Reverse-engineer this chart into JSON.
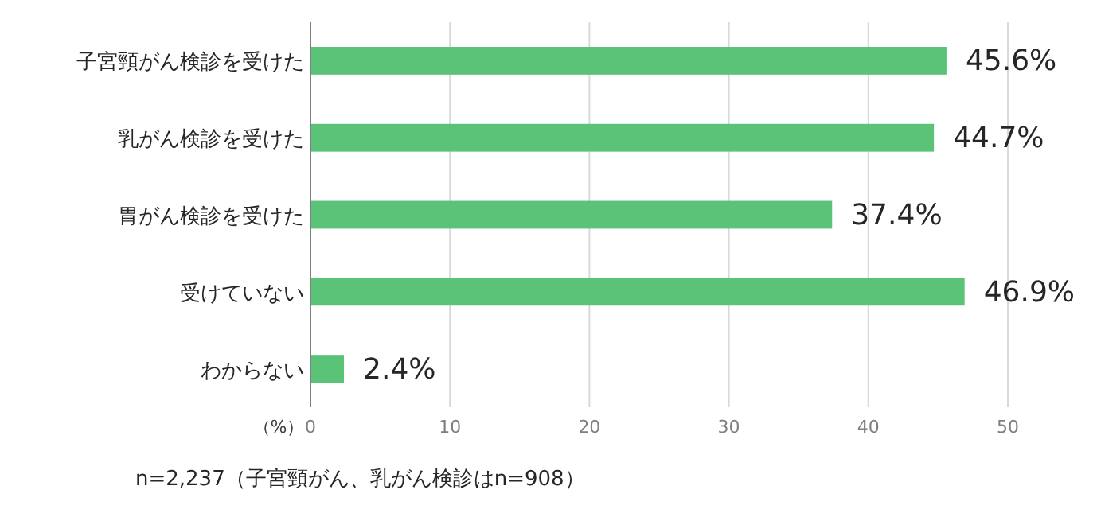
{
  "chart_data": {
    "type": "bar",
    "orientation": "horizontal",
    "categories": [
      "子宮頸がん検診を受けた",
      "乳がん検診を受けた",
      "胃がん検診を受けた",
      "受けていない",
      "わからない"
    ],
    "values": [
      45.6,
      44.7,
      37.4,
      46.9,
      2.4
    ],
    "value_labels": [
      "45.6%",
      "44.7%",
      "37.4%",
      "46.9%",
      "2.4%"
    ],
    "color": "#5bc377",
    "xlim": [
      0,
      50
    ],
    "xticks": [
      0,
      10,
      20,
      30,
      40,
      50
    ],
    "grid": "x",
    "xlabel": "（%）",
    "annotations": [
      "n=2,237（子宮頸がん、乳がん検診はn=908）"
    ]
  }
}
